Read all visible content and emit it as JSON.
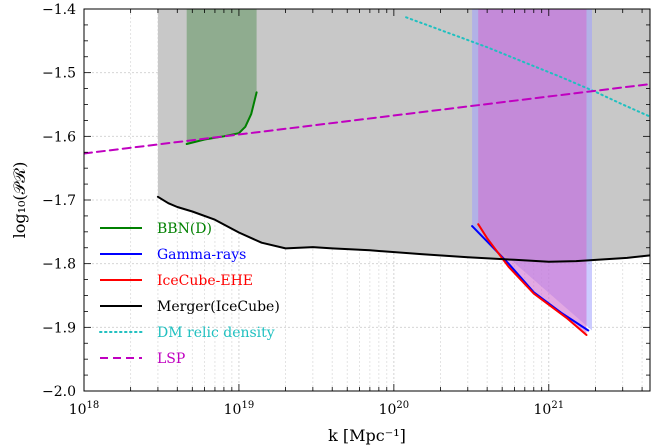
{
  "chart_data": {
    "type": "line",
    "xscale": "log",
    "xlim": [
      1e+18,
      4.5e+21
    ],
    "ylim": [
      -2.0,
      -1.4
    ],
    "xlabel": "k [Mpc⁻¹]",
    "ylabel": "log₁₀(𝒫ℛ)",
    "x_ticks": [
      {
        "base": "10",
        "exp": "18",
        "value": 1e+18
      },
      {
        "base": "10",
        "exp": "19",
        "value": 1e+19
      },
      {
        "base": "10",
        "exp": "20",
        "value": 1e+20
      },
      {
        "base": "10",
        "exp": "21",
        "value": 1e+21
      }
    ],
    "y_ticks": [
      {
        "label": "−2.0",
        "value": -2.0
      },
      {
        "label": "−1.9",
        "value": -1.9
      },
      {
        "label": "−1.8",
        "value": -1.8
      },
      {
        "label": "−1.7",
        "value": -1.7
      },
      {
        "label": "−1.6",
        "value": -1.6
      },
      {
        "label": "−1.5",
        "value": -1.5
      },
      {
        "label": "−1.4",
        "value": -1.4
      }
    ],
    "grid": true,
    "legend_position": "lower-left",
    "regions": [
      {
        "id": "merger",
        "color": "#c8c8c8",
        "opacity": 1.0,
        "x": [
          3e+18,
          4.5e+21,
          4.5e+21,
          3.2e+21,
          1.5e+21,
          1e+21,
          6e+20,
          3e+20,
          1.5e+20,
          7e+19,
          4e+19,
          3e+19,
          2e+19,
          1.4e+19,
          1e+19,
          7e+18,
          5e+18,
          4e+18,
          3.5e+18,
          3e+18
        ],
        "y": [
          -1.4,
          -1.4,
          -1.787,
          -1.791,
          -1.796,
          -1.797,
          -1.794,
          -1.79,
          -1.785,
          -1.779,
          -1.776,
          -1.774,
          -1.776,
          -1.767,
          -1.751,
          -1.731,
          -1.718,
          -1.711,
          -1.705,
          -1.695
        ]
      },
      {
        "id": "bbn",
        "color": "#4a8a4a",
        "opacity": 0.45,
        "x": [
          4.6e+18,
          1.3e+19,
          1.3e+19,
          1.2e+19,
          1.1e+19,
          1e+19,
          8e+18,
          6e+18,
          4.6e+18
        ],
        "y": [
          -1.4,
          -1.4,
          -1.531,
          -1.565,
          -1.585,
          -1.595,
          -1.6,
          -1.605,
          -1.612
        ]
      },
      {
        "id": "gamma",
        "color": "#a0a0ff",
        "opacity": 0.55,
        "x": [
          3.2e+20,
          1.9e+21,
          1.9e+21,
          3.2e+20
        ],
        "y": [
          -1.4,
          -1.4,
          -1.905,
          -1.741
        ]
      },
      {
        "id": "icecube",
        "color": "#d070d0",
        "opacity": 0.6,
        "x": [
          3.5e+20,
          1.75e+21,
          1.75e+21,
          1.3e+21,
          8e+20,
          5.5e+20,
          4e+20,
          3.5e+20
        ],
        "y": [
          -1.4,
          -1.4,
          -1.912,
          -1.885,
          -1.847,
          -1.805,
          -1.76,
          -1.738
        ]
      }
    ],
    "series": [
      {
        "name": "BBN(D)",
        "color": "#008000",
        "style": "solid",
        "x": [
          4.6e+18,
          6e+18,
          8e+18,
          1e+19,
          1.1e+19,
          1.2e+19,
          1.3e+19
        ],
        "y": [
          -1.612,
          -1.605,
          -1.6,
          -1.595,
          -1.585,
          -1.565,
          -1.531
        ]
      },
      {
        "name": "Gamma-rays",
        "color": "#0000ff",
        "style": "solid",
        "x": [
          3.2e+20,
          4e+20,
          5.5e+20,
          8e+20,
          1.2e+21,
          1.8e+21
        ],
        "y": [
          -1.741,
          -1.765,
          -1.8,
          -1.845,
          -1.877,
          -1.905
        ]
      },
      {
        "name": "IceCube-EHE",
        "color": "#ff0000",
        "style": "solid",
        "x": [
          3.5e+20,
          4e+20,
          5.5e+20,
          8e+20,
          1.3e+21,
          1.75e+21
        ],
        "y": [
          -1.738,
          -1.76,
          -1.805,
          -1.847,
          -1.885,
          -1.912
        ]
      },
      {
        "name": "Merger(IceCube)",
        "color": "#000000",
        "style": "solid",
        "x": [
          3e+18,
          3.5e+18,
          4e+18,
          5e+18,
          7e+18,
          1e+19,
          1.4e+19,
          2e+19,
          3e+19,
          4e+19,
          7e+19,
          1.5e+20,
          3e+20,
          6e+20,
          1e+21,
          1.5e+21,
          3.2e+21,
          4.5e+21
        ],
        "y": [
          -1.695,
          -1.705,
          -1.711,
          -1.718,
          -1.731,
          -1.751,
          -1.767,
          -1.776,
          -1.774,
          -1.776,
          -1.779,
          -1.785,
          -1.79,
          -1.794,
          -1.797,
          -1.796,
          -1.791,
          -1.787
        ]
      },
      {
        "name": "DM relic density",
        "color": "#20c0c0",
        "style": "dotted",
        "x": [
          1.2e+20,
          2e+20,
          4e+20,
          7e+20,
          1.2e+21,
          2e+21,
          3e+21,
          4.5e+21
        ],
        "y": [
          -1.413,
          -1.433,
          -1.46,
          -1.484,
          -1.507,
          -1.53,
          -1.55,
          -1.569
        ]
      },
      {
        "name": "LSP",
        "color": "#c000c0",
        "style": "dashed",
        "x": [
          1e+18,
          4.5e+21
        ],
        "y": [
          -1.627,
          -1.518
        ]
      }
    ]
  }
}
